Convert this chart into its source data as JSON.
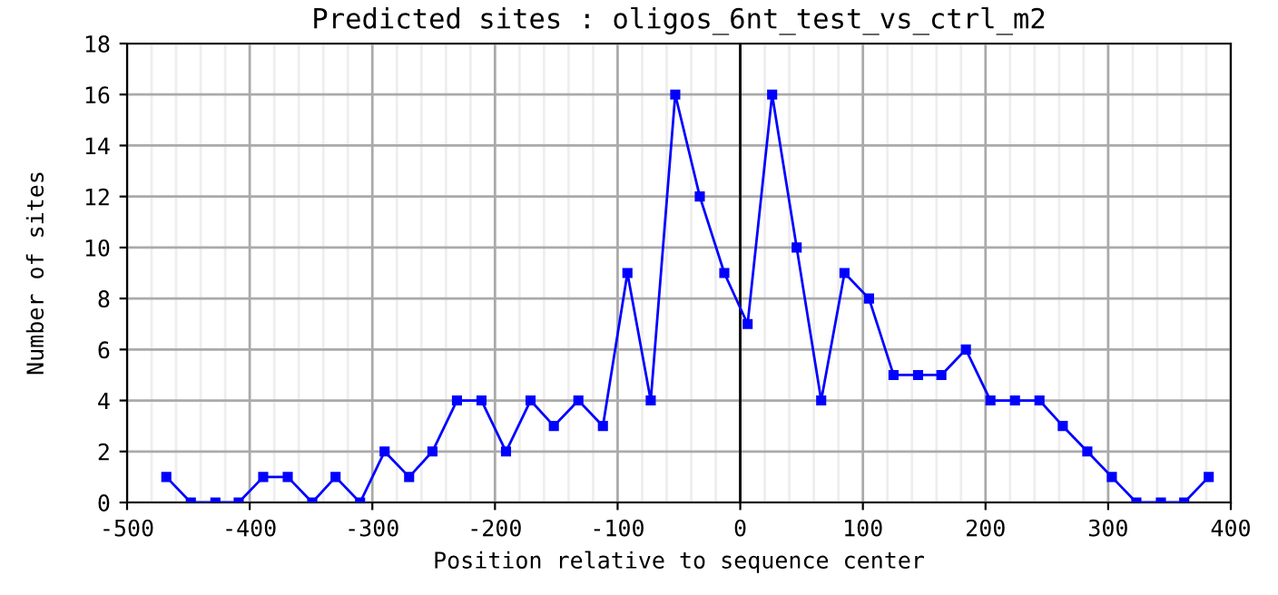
{
  "chart_data": {
    "type": "line",
    "title": "Predicted sites : oligos_6nt_test_vs_ctrl_m2",
    "xlabel": "Position relative to sequence center",
    "ylabel": "Number of sites",
    "x": [
      -468,
      -448,
      -428,
      -409,
      -389,
      -369,
      -349,
      -330,
      -310,
      -290,
      -270,
      -251,
      -231,
      -211,
      -191,
      -171,
      -152,
      -132,
      -112,
      -92,
      -73,
      -53,
      -33,
      -13,
      6,
      26,
      46,
      66,
      85,
      105,
      125,
      145,
      164,
      184,
      204,
      224,
      244,
      263,
      283,
      303,
      323,
      343,
      362,
      382
    ],
    "series": [
      {
        "color": "#0000ff",
        "values": [
          1,
          0,
          0,
          0,
          1,
          1,
          0,
          1,
          0,
          2,
          1,
          2,
          4,
          4,
          2,
          4,
          3,
          4,
          3,
          9,
          4,
          16,
          12,
          9,
          7,
          16,
          10,
          4,
          9,
          8,
          5,
          5,
          5,
          6,
          4,
          4,
          4,
          3,
          2,
          1,
          0,
          0,
          0,
          1
        ]
      }
    ],
    "xlim": [
      -500,
      400
    ],
    "ylim": [
      0,
      18
    ],
    "xticks": [
      -500,
      {
        "value": -480,
        "label": null
      },
      {
        "value": -460,
        "label": null
      },
      {
        "value": -440,
        "label": null
      },
      {
        "value": -420,
        "label": null
      },
      -400,
      {
        "value": -380,
        "label": null
      },
      {
        "value": -360,
        "label": null
      },
      {
        "value": -340,
        "label": null
      },
      {
        "value": -320,
        "label": null
      },
      -300,
      {
        "value": -280,
        "label": null
      },
      {
        "value": -260,
        "label": null
      },
      {
        "value": -240,
        "label": null
      },
      {
        "value": -220,
        "label": null
      },
      -200,
      {
        "value": -180,
        "label": null
      },
      {
        "value": -160,
        "label": null
      },
      {
        "value": -140,
        "label": null
      },
      {
        "value": -120,
        "label": null
      },
      -100,
      {
        "value": -80,
        "label": null
      },
      {
        "value": -60,
        "label": null
      },
      {
        "value": -40,
        "label": null
      },
      {
        "value": -20,
        "label": null
      },
      0,
      {
        "value": 20,
        "label": null
      },
      {
        "value": 40,
        "label": null
      },
      {
        "value": 60,
        "label": null
      },
      {
        "value": 80,
        "label": null
      },
      100,
      {
        "value": 120,
        "label": null
      },
      {
        "value": 140,
        "label": null
      },
      {
        "value": 160,
        "label": null
      },
      {
        "value": 180,
        "label": null
      },
      200,
      {
        "value": 220,
        "label": null
      },
      {
        "value": 240,
        "label": null
      },
      {
        "value": 260,
        "label": null
      },
      {
        "value": 280,
        "label": null
      },
      300,
      {
        "value": 320,
        "label": null
      },
      {
        "value": 340,
        "label": null
      },
      {
        "value": 360,
        "label": null
      },
      {
        "value": 380,
        "label": null
      },
      400
    ],
    "yticks": [
      0,
      2,
      4,
      6,
      8,
      10,
      12,
      14,
      16,
      18
    ],
    "grid": true,
    "marker": "square",
    "line_style": "solid",
    "ref_lines": [
      {
        "axis": "x",
        "value": 0,
        "color": "#000000"
      }
    ]
  }
}
